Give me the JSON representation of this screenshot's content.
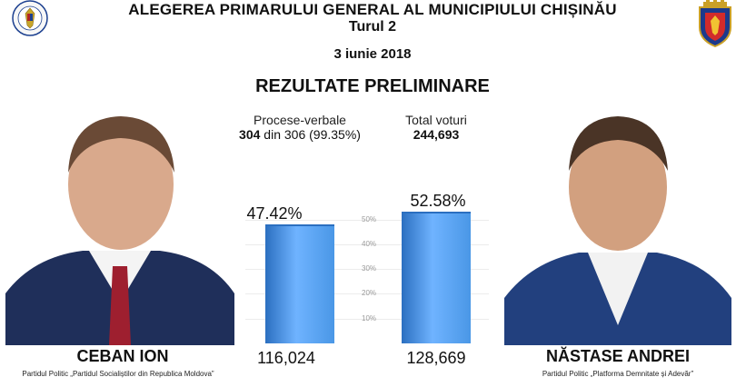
{
  "header": {
    "title": "ALEGEREA PRIMARULUI GENERAL AL MUNICIPIULUI CHIȘINĂU",
    "round": "Turul 2",
    "date": "3 iunie 2018",
    "heading": "REZULTATE PRELIMINARE"
  },
  "stats": {
    "pv_label": "Procese-verbale",
    "pv_counted": "304",
    "pv_rest": " din 306 (99.35%)",
    "total_label": "Total voturi",
    "total_value": "244,693"
  },
  "candidates": [
    {
      "name": "CEBAN ION",
      "party": "Partidul Politic „Partidul Socialiștilor din Republica Moldova”",
      "percent_label": "47.42%",
      "percent": 47.42,
      "votes": "116,024"
    },
    {
      "name": "NĂSTASE ANDREI",
      "party": "Partidul Politic „Platforma Demnitate și Adevăr”",
      "percent_label": "52.58%",
      "percent": 52.58,
      "votes": "128,669"
    }
  ],
  "chart_data": {
    "type": "bar",
    "categories": [
      "CEBAN ION",
      "NĂSTASE ANDREI"
    ],
    "values": [
      47.42,
      52.58
    ],
    "ylim": [
      0,
      55
    ],
    "yticks": [
      "10%",
      "20%",
      "30%",
      "40%",
      "50%"
    ],
    "bar_color": "#4a97e6"
  },
  "colors": {
    "bar": "#4a97e6",
    "bar_edge": "#2b6fc0",
    "suit": "#1f2f5a"
  }
}
